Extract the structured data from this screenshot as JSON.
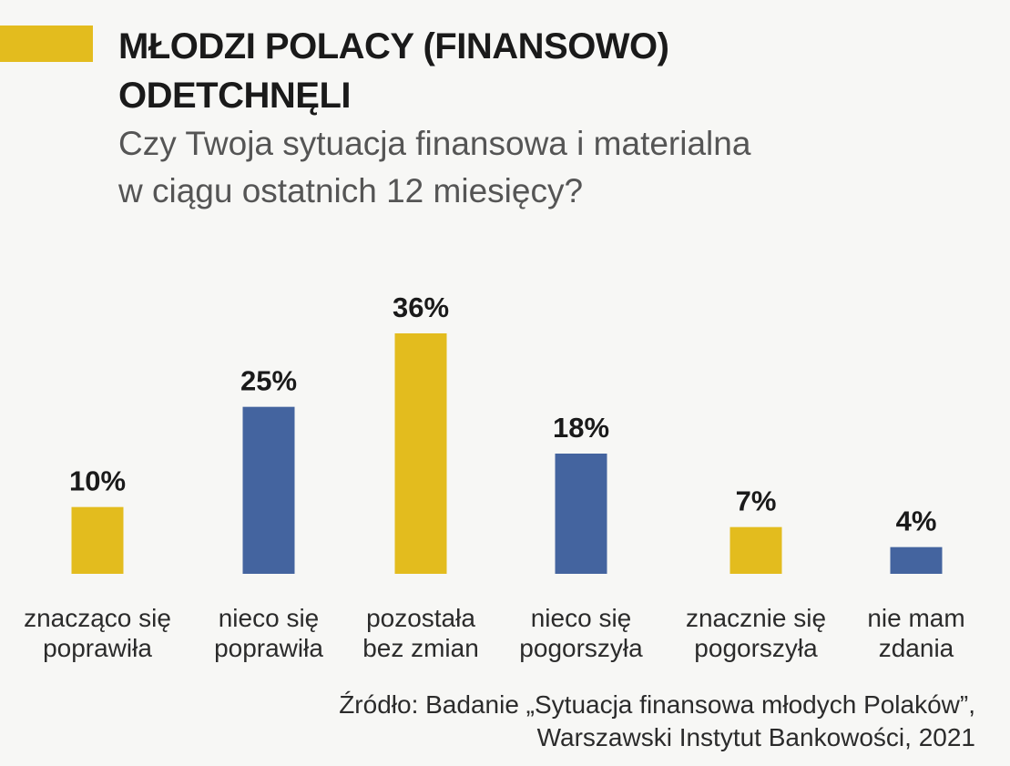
{
  "header": {
    "title_line1": "MŁODZI POLACY (FINANSOWO)",
    "title_line2": "ODETCHNĘLI",
    "subtitle_line1": "Czy Twoja sytuacja finansowa i materialna",
    "subtitle_line2": "w ciągu ostatnich 12 miesięcy?"
  },
  "colors": {
    "yellow": "#e3bc1e",
    "blue": "#44649f",
    "accent": "#e3bc1e"
  },
  "chart_data": {
    "type": "bar",
    "title": "MŁODZI POLACY (FINANSOWO) ODETCHNĘLI",
    "subtitle": "Czy Twoja sytuacja finansowa i materialna w ciągu ostatnich 12 miesięcy?",
    "unit": "%",
    "ylim": [
      0,
      36
    ],
    "grid": false,
    "legend": "none",
    "categories": [
      [
        "znacząco się",
        "poprawiła"
      ],
      [
        "nieco się",
        "poprawiła"
      ],
      [
        "pozostała",
        "bez zmian"
      ],
      [
        "nieco się",
        "pogorszyła"
      ],
      [
        "znacznie się",
        "pogorszyła"
      ],
      [
        "nie mam",
        "zdania"
      ]
    ],
    "values": [
      10,
      25,
      36,
      18,
      7,
      4
    ],
    "value_labels": [
      "10%",
      "25%",
      "36%",
      "18%",
      "7%",
      "4%"
    ],
    "bar_colors": [
      "#e3bc1e",
      "#44649f",
      "#e3bc1e",
      "#44649f",
      "#e3bc1e",
      "#44649f"
    ]
  },
  "source": {
    "line1": "Źródło: Badanie „Sytuacja finansowa młodych Polaków”,",
    "line2": "Warszawski Instytut Bankowości, 2021"
  }
}
